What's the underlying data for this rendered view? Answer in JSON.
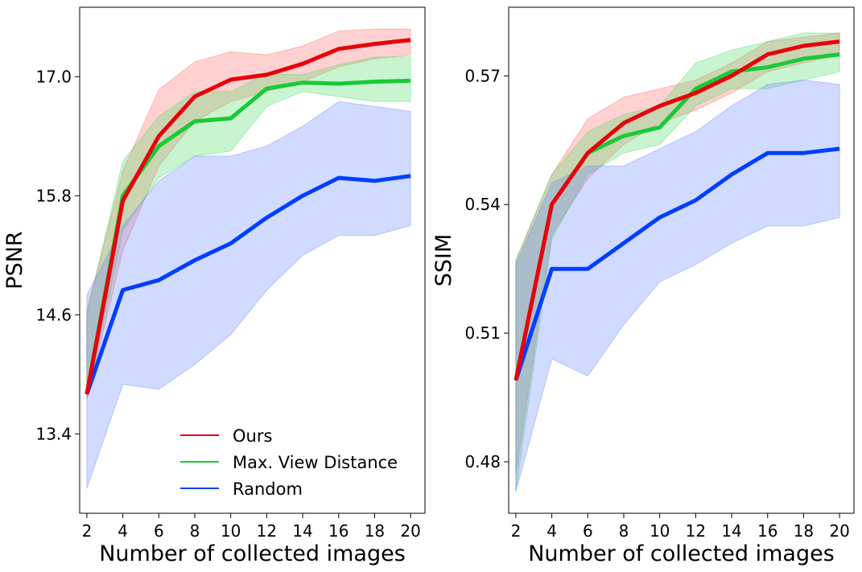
{
  "chart_data": [
    {
      "type": "line",
      "panel": "left",
      "title": "",
      "xlabel": "Number of collected images",
      "ylabel": "PSNR",
      "xlim": [
        1.6,
        20.8
      ],
      "ylim": [
        12.6,
        17.7
      ],
      "xticks": [
        2,
        4,
        6,
        8,
        10,
        12,
        14,
        16,
        18,
        20
      ],
      "yticks": [
        13.4,
        14.6,
        15.8,
        17.0
      ],
      "ytick_labels": [
        "13.4",
        "14.6",
        "15.8",
        "17.0"
      ],
      "x": [
        2,
        4,
        6,
        8,
        10,
        12,
        14,
        16,
        18,
        20
      ],
      "legend": {
        "location": "lower-center",
        "entries": [
          "Ours",
          "Max. View Distance",
          "Random"
        ]
      },
      "series": [
        {
          "name": "Ours",
          "color": "#e8000b",
          "band_color": "#ff6666",
          "values": [
            13.8,
            15.75,
            16.4,
            16.8,
            16.97,
            17.02,
            17.13,
            17.28,
            17.33,
            17.37
          ],
          "lower": [
            13.75,
            15.25,
            16.1,
            16.55,
            16.75,
            16.85,
            16.95,
            17.1,
            17.18,
            17.22
          ],
          "upper": [
            14.65,
            16.05,
            16.87,
            17.15,
            17.25,
            17.22,
            17.31,
            17.46,
            17.48,
            17.48
          ]
        },
        {
          "name": "Max. View Distance",
          "color": "#1ac938",
          "band_color": "#4cd964",
          "values": [
            13.8,
            15.8,
            16.3,
            16.55,
            16.58,
            16.88,
            16.94,
            16.93,
            16.95,
            16.96
          ],
          "lower": [
            13.75,
            15.45,
            15.98,
            16.2,
            16.25,
            16.7,
            16.85,
            16.8,
            16.75,
            16.75
          ],
          "upper": [
            14.6,
            16.15,
            16.6,
            16.85,
            16.85,
            17.03,
            17.02,
            17.12,
            17.2,
            17.2
          ]
        },
        {
          "name": "Random",
          "color": "#023eff",
          "band_color": "#6688ff",
          "values": [
            13.8,
            14.85,
            14.95,
            15.15,
            15.32,
            15.58,
            15.8,
            15.98,
            15.95,
            16.0
          ],
          "lower": [
            12.85,
            13.9,
            13.85,
            14.1,
            14.4,
            14.85,
            15.2,
            15.4,
            15.4,
            15.5
          ],
          "upper": [
            14.8,
            15.5,
            15.95,
            16.2,
            16.2,
            16.3,
            16.5,
            16.75,
            16.7,
            16.65
          ]
        }
      ]
    },
    {
      "type": "line",
      "panel": "right",
      "title": "",
      "xlabel": "Number of collected images",
      "ylabel": "SSIM",
      "xlim": [
        1.6,
        20.8
      ],
      "ylim": [
        0.468,
        0.586
      ],
      "xticks": [
        2,
        4,
        6,
        8,
        10,
        12,
        14,
        16,
        18,
        20
      ],
      "yticks": [
        0.48,
        0.51,
        0.54,
        0.57
      ],
      "ytick_labels": [
        "0.48",
        "0.51",
        "0.54",
        "0.57"
      ],
      "x": [
        2,
        4,
        6,
        8,
        10,
        12,
        14,
        16,
        18,
        20
      ],
      "series": [
        {
          "name": "Ours",
          "color": "#e8000b",
          "band_color": "#ff6666",
          "values": [
            0.499,
            0.54,
            0.552,
            0.559,
            0.563,
            0.566,
            0.57,
            0.575,
            0.577,
            0.578
          ],
          "lower": [
            0.477,
            0.533,
            0.546,
            0.554,
            0.559,
            0.562,
            0.566,
            0.571,
            0.573,
            0.575
          ],
          "upper": [
            0.527,
            0.547,
            0.56,
            0.565,
            0.567,
            0.569,
            0.573,
            0.578,
            0.579,
            0.58
          ]
        },
        {
          "name": "Max. View Distance",
          "color": "#1ac938",
          "band_color": "#4cd964",
          "values": [
            0.499,
            0.54,
            0.552,
            0.556,
            0.558,
            0.567,
            0.571,
            0.572,
            0.574,
            0.575
          ],
          "lower": [
            0.473,
            0.532,
            0.547,
            0.552,
            0.554,
            0.563,
            0.567,
            0.567,
            0.569,
            0.571
          ],
          "upper": [
            0.527,
            0.547,
            0.557,
            0.561,
            0.563,
            0.573,
            0.576,
            0.578,
            0.58,
            0.58
          ]
        },
        {
          "name": "Random",
          "color": "#023eff",
          "band_color": "#6688ff",
          "values": [
            0.499,
            0.525,
            0.525,
            0.531,
            0.537,
            0.541,
            0.547,
            0.552,
            0.552,
            0.553
          ],
          "lower": [
            0.473,
            0.504,
            0.5,
            0.512,
            0.522,
            0.526,
            0.531,
            0.535,
            0.535,
            0.537
          ],
          "upper": [
            0.526,
            0.545,
            0.549,
            0.549,
            0.553,
            0.557,
            0.563,
            0.568,
            0.569,
            0.568
          ]
        }
      ]
    }
  ]
}
